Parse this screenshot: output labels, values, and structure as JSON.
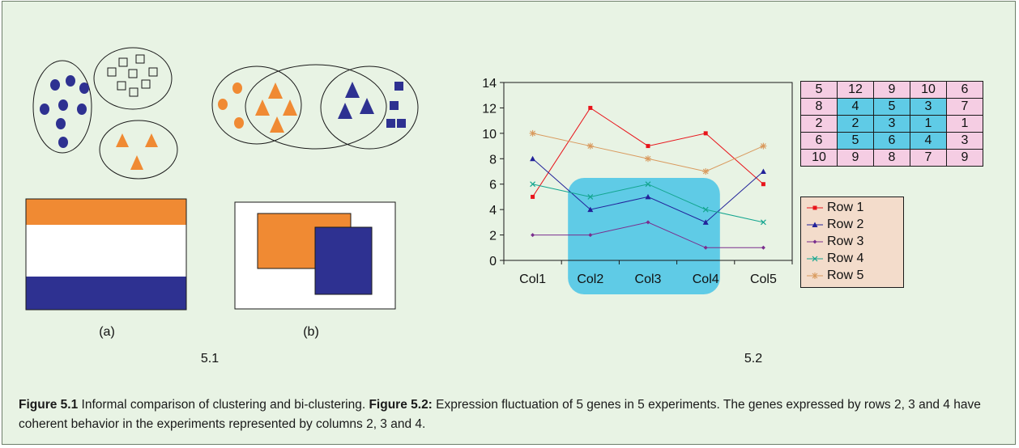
{
  "figure": {
    "panel_a_label": "(a)",
    "panel_b_label": "(b)",
    "fig1_label": "5.1",
    "fig2_label": "5.2",
    "colors": {
      "orange": "#f08a33",
      "blue": "#2e3191",
      "highlight": "#5fcbe6",
      "matrix_bg": "#f5cde3",
      "legend_bg": "#f3dccb",
      "panel_bg": "#e8f3e4"
    },
    "caption": {
      "fig51_ref": "Figure 5.1",
      "fig51_text": " Informal comparison of clustering and bi-clustering. ",
      "fig52_ref": "Figure 5.2:",
      "fig52_text": " Expression fluctuation of 5 genes in 5 experiments. The genes expressed by rows 2, 3 and 4 have coherent behavior in the experiments represented by columns 2, 3 and 4."
    }
  },
  "chart_data": {
    "type": "line",
    "categories": [
      "Col1",
      "Col2",
      "Col3",
      "Col4",
      "Col5"
    ],
    "ylim": [
      0,
      14
    ],
    "yticks": [
      0,
      2,
      4,
      6,
      8,
      10,
      12,
      14
    ],
    "series": [
      {
        "name": "Row 1",
        "values": [
          5,
          12,
          9,
          10,
          6
        ],
        "color": "#e8141b",
        "marker": "square"
      },
      {
        "name": "Row 2",
        "values": [
          8,
          4,
          5,
          3,
          7
        ],
        "color": "#22229a",
        "marker": "triangle"
      },
      {
        "name": "Row 3",
        "values": [
          2,
          2,
          3,
          1,
          1
        ],
        "color": "#7a2e8e",
        "marker": "diamond"
      },
      {
        "name": "Row 4",
        "values": [
          6,
          5,
          6,
          4,
          3
        ],
        "color": "#13a58f",
        "marker": "x"
      },
      {
        "name": "Row 5",
        "values": [
          10,
          9,
          8,
          7,
          9
        ],
        "color": "#d99a5e",
        "marker": "star"
      }
    ],
    "highlight_columns": [
      "Col2",
      "Col3",
      "Col4"
    ],
    "highlight_rows": [
      "Row 2",
      "Row 3",
      "Row 4"
    ]
  },
  "matrix": {
    "rows": [
      [
        5,
        12,
        9,
        10,
        6
      ],
      [
        8,
        4,
        5,
        3,
        7
      ],
      [
        2,
        2,
        3,
        1,
        1
      ],
      [
        6,
        5,
        6,
        4,
        3
      ],
      [
        10,
        9,
        8,
        7,
        9
      ]
    ],
    "highlight": {
      "rows": [
        1,
        2,
        3
      ],
      "cols": [
        1,
        2,
        3
      ]
    }
  }
}
